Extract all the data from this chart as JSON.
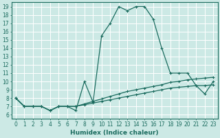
{
  "title": "",
  "xlabel": "Humidex (Indice chaleur)",
  "xlim": [
    -0.5,
    23.5
  ],
  "ylim": [
    5.5,
    19.5
  ],
  "yticks": [
    6,
    7,
    8,
    9,
    10,
    11,
    12,
    13,
    14,
    15,
    16,
    17,
    18,
    19
  ],
  "xticks": [
    0,
    1,
    2,
    3,
    4,
    5,
    6,
    7,
    8,
    9,
    10,
    11,
    12,
    13,
    14,
    15,
    16,
    17,
    18,
    19,
    20,
    21,
    22,
    23
  ],
  "bg_color": "#cce9e5",
  "grid_color": "#ffffff",
  "line_color": "#1a6b5e",
  "line1_x": [
    0,
    1,
    2,
    3,
    4,
    5,
    6,
    7,
    8,
    9,
    10,
    11,
    12,
    13,
    14,
    15,
    16,
    17,
    18,
    19,
    20,
    21,
    22,
    23
  ],
  "line1_y": [
    8.0,
    7.0,
    7.0,
    7.0,
    6.5,
    7.0,
    7.0,
    6.5,
    10.0,
    7.5,
    15.5,
    17.0,
    19.0,
    18.5,
    19.0,
    19.0,
    17.5,
    14.0,
    11.0,
    11.0,
    11.0,
    9.5,
    8.5,
    10.0
  ],
  "line2_x": [
    0,
    1,
    2,
    3,
    4,
    5,
    6,
    7,
    8,
    9,
    10,
    11,
    12,
    13,
    14,
    15,
    16,
    17,
    18,
    19,
    20,
    21,
    22,
    23
  ],
  "line2_y": [
    8.0,
    7.0,
    7.0,
    7.0,
    6.5,
    7.0,
    7.0,
    7.0,
    7.2,
    7.4,
    7.6,
    7.8,
    8.0,
    8.2,
    8.4,
    8.6,
    8.8,
    9.0,
    9.2,
    9.3,
    9.4,
    9.5,
    9.5,
    9.6
  ],
  "line3_x": [
    0,
    1,
    2,
    3,
    4,
    5,
    6,
    7,
    8,
    9,
    10,
    11,
    12,
    13,
    14,
    15,
    16,
    17,
    18,
    19,
    20,
    21,
    22,
    23
  ],
  "line3_y": [
    8.0,
    7.0,
    7.0,
    7.0,
    6.5,
    7.0,
    7.0,
    7.0,
    7.3,
    7.6,
    7.9,
    8.2,
    8.5,
    8.8,
    9.0,
    9.2,
    9.4,
    9.6,
    9.9,
    10.0,
    10.2,
    10.3,
    10.4,
    10.5
  ],
  "tick_fontsize": 5.5,
  "xlabel_fontsize": 6.5
}
